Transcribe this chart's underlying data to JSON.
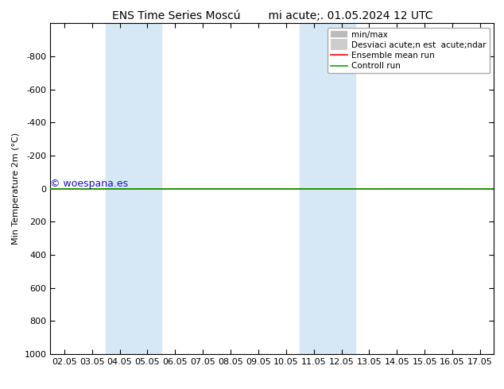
{
  "title": "ENS Time Series Moscú        mi acute;. 01.05.2024 12 UTC",
  "ylabel": "Min Temperature 2m (°C)",
  "xlabel": "",
  "ylim_bottom": -1000,
  "ylim_top": 1000,
  "xlim": [
    0,
    15
  ],
  "xtick_labels": [
    "02.05",
    "03.05",
    "04.05",
    "05.05",
    "06.05",
    "07.05",
    "08.05",
    "09.05",
    "10.05",
    "11.05",
    "12.05",
    "13.05",
    "14.05",
    "15.05",
    "16.05",
    "17.05"
  ],
  "ytick_values": [
    -800,
    -600,
    -400,
    -200,
    0,
    200,
    400,
    600,
    800,
    1000
  ],
  "shaded_bands": [
    {
      "x_start": 2,
      "x_end": 4,
      "color": "#d6e8f5"
    },
    {
      "x_start": 9,
      "x_end": 11,
      "color": "#d6e8f5"
    }
  ],
  "control_run_y": 0,
  "ensemble_mean_y": 0,
  "control_run_color": "#00aa00",
  "ensemble_mean_color": "#ff0000",
  "watermark": "© woespana.es",
  "watermark_color": "#1010cc",
  "watermark_fontsize": 9,
  "legend_label_minmax": "min/max",
  "legend_label_std": "Desviaci acute;n est  acute;ndar",
  "legend_label_ensemble": "Ensemble mean run",
  "legend_label_control": "Controll run",
  "legend_color_minmax": "#bbbbbb",
  "legend_color_std": "#cccccc",
  "legend_lw_minmax": 6,
  "legend_lw_std": 10,
  "bg_color": "#ffffff",
  "title_fontsize": 10,
  "axis_fontsize": 8,
  "tick_fontsize": 8
}
